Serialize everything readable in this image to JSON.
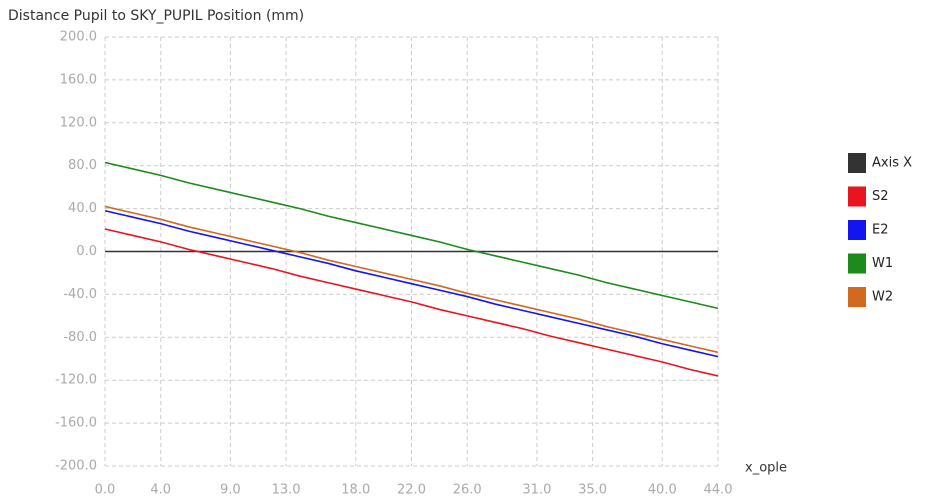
{
  "chart_data": {
    "type": "line",
    "title": "Distance Pupil to SKY_PUPIL Position (mm)",
    "x_label": "x_ople",
    "x": [
      0,
      2,
      4,
      6,
      8,
      10,
      12,
      14,
      16,
      18,
      20,
      22,
      24,
      26,
      28,
      30,
      32,
      34,
      36,
      38,
      40,
      42,
      44
    ],
    "series": [
      {
        "name": "Axis X",
        "color": "#333333",
        "values": [
          0,
          0,
          0,
          0,
          0,
          0,
          0,
          0,
          0,
          0,
          0,
          0,
          0,
          0,
          0,
          0,
          0,
          0,
          0,
          0,
          0,
          0,
          0
        ]
      },
      {
        "name": "S2",
        "color": "#e8141e",
        "values": [
          21,
          15,
          9,
          2,
          -4,
          -10,
          -16,
          -23,
          -29,
          -35,
          -41,
          -47,
          -54,
          -60,
          -66,
          -72,
          -79,
          -85,
          -91,
          -97,
          -103,
          -110,
          -116
        ]
      },
      {
        "name": "E2",
        "color": "#1414f0",
        "values": [
          38,
          32,
          26,
          19,
          13,
          7,
          1,
          -5,
          -11,
          -18,
          -24,
          -30,
          -36,
          -42,
          -49,
          -55,
          -61,
          -67,
          -73,
          -79,
          -86,
          -92,
          -98
        ]
      },
      {
        "name": "W1",
        "color": "#1e8a1e",
        "values": [
          83,
          77,
          71,
          64,
          58,
          52,
          46,
          40,
          33,
          27,
          21,
          15,
          9,
          2,
          -4,
          -10,
          -16,
          -22,
          -29,
          -35,
          -41,
          -47,
          -53
        ]
      },
      {
        "name": "W2",
        "color": "#d2691e",
        "values": [
          42,
          36,
          30,
          23,
          17,
          11,
          5,
          -1,
          -8,
          -14,
          -20,
          -26,
          -32,
          -39,
          -45,
          -51,
          -57,
          -63,
          -70,
          -76,
          -82,
          -88,
          -94
        ]
      }
    ],
    "xlim": [
      0,
      44
    ],
    "xticks": [
      {
        "value": 0,
        "label": "0.0"
      },
      {
        "value": 4,
        "label": "4.0"
      },
      {
        "value": 9,
        "label": "9.0"
      },
      {
        "value": 13,
        "label": "13.0"
      },
      {
        "value": 18,
        "label": "18.0"
      },
      {
        "value": 22,
        "label": "22.0"
      },
      {
        "value": 26,
        "label": "26.0"
      },
      {
        "value": 31,
        "label": "31.0"
      },
      {
        "value": 35,
        "label": "35.0"
      },
      {
        "value": 40,
        "label": "40.0"
      },
      {
        "value": 44,
        "label": "44.0"
      }
    ],
    "ylim": [
      -200,
      200
    ],
    "yticks": [
      {
        "value": 200,
        "label": "200.0"
      },
      {
        "value": 160,
        "label": "160.0"
      },
      {
        "value": 120,
        "label": "120.0"
      },
      {
        "value": 80,
        "label": "80.0"
      },
      {
        "value": 40,
        "label": "40.0"
      },
      {
        "value": 0,
        "label": "0.0"
      },
      {
        "value": -40,
        "label": "-40.0"
      },
      {
        "value": -80,
        "label": "-80.0"
      },
      {
        "value": -120,
        "label": "-120.0"
      },
      {
        "value": -160,
        "label": "-160.0"
      },
      {
        "value": -200,
        "label": "-200.0"
      }
    ],
    "grid": true,
    "legend": "right"
  }
}
